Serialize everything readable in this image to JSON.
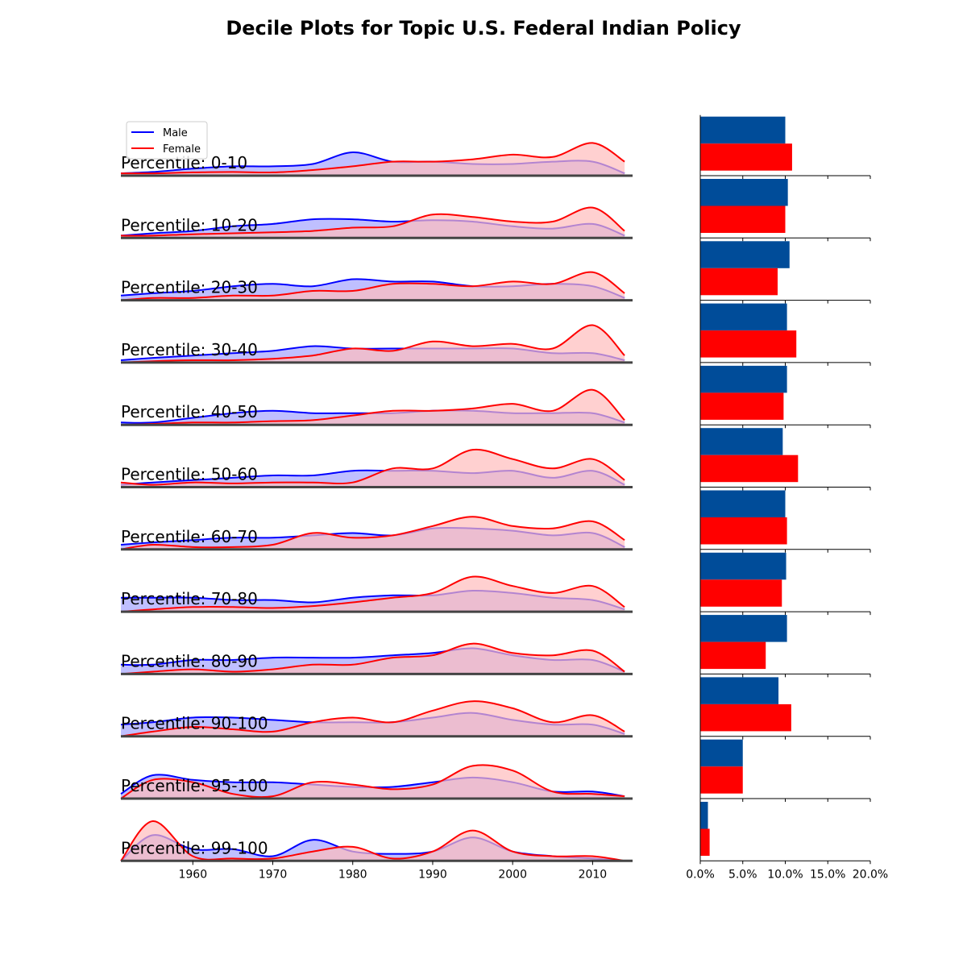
{
  "chart_data": {
    "type": "area",
    "title": "Decile Plots for Topic U.S. Federal Indian Policy",
    "colors": {
      "male_line": "#0000ff",
      "male_fill": "#b8b8ff",
      "female_line": "#ff0000",
      "female_fill": "#ffbcbc",
      "male_bar": "#004c99",
      "female_bar": "#ff0000",
      "baseline": "#444444"
    },
    "legend": {
      "placement": "top-left",
      "entries": [
        "Male",
        "Female"
      ]
    },
    "density_panels": {
      "x_range": [
        1951,
        2015
      ],
      "x_ticks": [
        "1960",
        "1970",
        "1980",
        "1990",
        "2000",
        "2010"
      ],
      "x_tick_values": [
        1960,
        1970,
        1980,
        1990,
        2000,
        2010
      ],
      "y_range": [
        0,
        1
      ],
      "x": [
        1951,
        1955,
        1960,
        1965,
        1970,
        1975,
        1980,
        1985,
        1990,
        1995,
        2000,
        2005,
        2010,
        2014
      ],
      "rows": [
        {
          "label": "Percentile: 0-10",
          "male": [
            0.05,
            0.08,
            0.15,
            0.2,
            0.2,
            0.25,
            0.5,
            0.3,
            0.3,
            0.25,
            0.25,
            0.3,
            0.3,
            0.05
          ],
          "female": [
            0.05,
            0.05,
            0.07,
            0.08,
            0.07,
            0.12,
            0.2,
            0.3,
            0.3,
            0.35,
            0.45,
            0.4,
            0.7,
            0.3
          ]
        },
        {
          "label": "Percentile: 10-20",
          "male": [
            0.05,
            0.1,
            0.15,
            0.25,
            0.3,
            0.4,
            0.4,
            0.35,
            0.38,
            0.35,
            0.25,
            0.2,
            0.3,
            0.05
          ],
          "female": [
            0.05,
            0.05,
            0.08,
            0.1,
            0.12,
            0.15,
            0.22,
            0.25,
            0.5,
            0.45,
            0.35,
            0.35,
            0.65,
            0.15
          ]
        },
        {
          "label": "Percentile: 20-30",
          "male": [
            0.1,
            0.15,
            0.2,
            0.3,
            0.35,
            0.3,
            0.45,
            0.4,
            0.4,
            0.3,
            0.3,
            0.35,
            0.3,
            0.05
          ],
          "female": [
            0.0,
            0.05,
            0.05,
            0.1,
            0.1,
            0.2,
            0.2,
            0.35,
            0.35,
            0.3,
            0.4,
            0.35,
            0.6,
            0.15
          ]
        },
        {
          "label": "Percentile: 30-40",
          "male": [
            0.05,
            0.1,
            0.15,
            0.2,
            0.25,
            0.35,
            0.3,
            0.3,
            0.3,
            0.3,
            0.3,
            0.2,
            0.2,
            0.05
          ],
          "female": [
            0.0,
            0.03,
            0.05,
            0.05,
            0.08,
            0.15,
            0.3,
            0.25,
            0.45,
            0.35,
            0.4,
            0.3,
            0.8,
            0.15
          ]
        },
        {
          "label": "Percentile: 40-50",
          "male": [
            0.05,
            0.05,
            0.15,
            0.25,
            0.3,
            0.25,
            0.25,
            0.25,
            0.3,
            0.3,
            0.25,
            0.25,
            0.25,
            0.05
          ],
          "female": [
            0.0,
            0.02,
            0.05,
            0.05,
            0.08,
            0.1,
            0.2,
            0.3,
            0.3,
            0.35,
            0.45,
            0.3,
            0.75,
            0.1
          ]
        },
        {
          "label": "Percentile: 50-60",
          "male": [
            0.05,
            0.1,
            0.15,
            0.2,
            0.25,
            0.25,
            0.35,
            0.35,
            0.35,
            0.3,
            0.35,
            0.2,
            0.35,
            0.05
          ],
          "female": [
            0.1,
            0.05,
            0.1,
            0.08,
            0.1,
            0.1,
            0.1,
            0.4,
            0.4,
            0.8,
            0.6,
            0.4,
            0.6,
            0.15
          ]
        },
        {
          "label": "Percentile: 60-70",
          "male": [
            0.1,
            0.15,
            0.2,
            0.25,
            0.25,
            0.3,
            0.35,
            0.3,
            0.45,
            0.45,
            0.4,
            0.3,
            0.35,
            0.05
          ],
          "female": [
            0.0,
            0.1,
            0.05,
            0.05,
            0.1,
            0.35,
            0.25,
            0.3,
            0.5,
            0.7,
            0.5,
            0.45,
            0.6,
            0.2
          ]
        },
        {
          "label": "Percentile: 70-80",
          "male": [
            0.3,
            0.3,
            0.3,
            0.25,
            0.25,
            0.2,
            0.3,
            0.35,
            0.35,
            0.45,
            0.4,
            0.3,
            0.25,
            0.05
          ],
          "female": [
            0.0,
            0.05,
            0.1,
            0.1,
            0.08,
            0.12,
            0.2,
            0.3,
            0.4,
            0.75,
            0.55,
            0.4,
            0.55,
            0.1
          ]
        },
        {
          "label": "Percentile: 80-90",
          "male": [
            0.2,
            0.2,
            0.3,
            0.3,
            0.35,
            0.35,
            0.35,
            0.4,
            0.45,
            0.55,
            0.4,
            0.3,
            0.3,
            0.05
          ],
          "female": [
            0.0,
            0.05,
            0.1,
            0.05,
            0.1,
            0.2,
            0.2,
            0.35,
            0.4,
            0.65,
            0.45,
            0.4,
            0.5,
            0.05
          ]
        },
        {
          "label": "Percentile: 90-100",
          "male": [
            0.25,
            0.3,
            0.4,
            0.4,
            0.35,
            0.3,
            0.3,
            0.3,
            0.4,
            0.5,
            0.35,
            0.25,
            0.25,
            0.05
          ],
          "female": [
            0.0,
            0.1,
            0.2,
            0.15,
            0.1,
            0.3,
            0.4,
            0.3,
            0.55,
            0.75,
            0.6,
            0.3,
            0.45,
            0.1
          ]
        },
        {
          "label": "Percentile: 95-100",
          "male": [
            0.1,
            0.5,
            0.4,
            0.35,
            0.35,
            0.3,
            0.25,
            0.25,
            0.35,
            0.45,
            0.35,
            0.15,
            0.15,
            0.05
          ],
          "female": [
            0.0,
            0.4,
            0.35,
            0.1,
            0.05,
            0.35,
            0.3,
            0.2,
            0.3,
            0.7,
            0.6,
            0.15,
            0.1,
            0.05
          ]
        },
        {
          "label": "Percentile: 99-100",
          "male": [
            0.0,
            0.55,
            0.25,
            0.25,
            0.1,
            0.45,
            0.2,
            0.15,
            0.2,
            0.5,
            0.2,
            0.1,
            0.05,
            0.0
          ],
          "female": [
            0.0,
            0.85,
            0.1,
            0.05,
            0.05,
            0.2,
            0.3,
            0.05,
            0.2,
            0.65,
            0.2,
            0.1,
            0.1,
            0.0
          ]
        }
      ]
    },
    "bar_panels": {
      "type": "bar",
      "orientation": "horizontal",
      "x_range": [
        0,
        20
      ],
      "x_ticks": [
        "0.0%",
        "5.0%",
        "10.0%",
        "15.0%",
        "20.0%"
      ],
      "x_tick_values": [
        0,
        5,
        10,
        15,
        20
      ],
      "male": [
        10.0,
        10.3,
        10.5,
        10.2,
        10.2,
        9.7,
        10.0,
        10.1,
        10.2,
        9.2,
        5.0,
        0.9
      ],
      "female": [
        10.8,
        10.0,
        9.1,
        11.3,
        9.8,
        11.5,
        10.2,
        9.6,
        7.7,
        10.7,
        5.0,
        1.1
      ]
    }
  }
}
